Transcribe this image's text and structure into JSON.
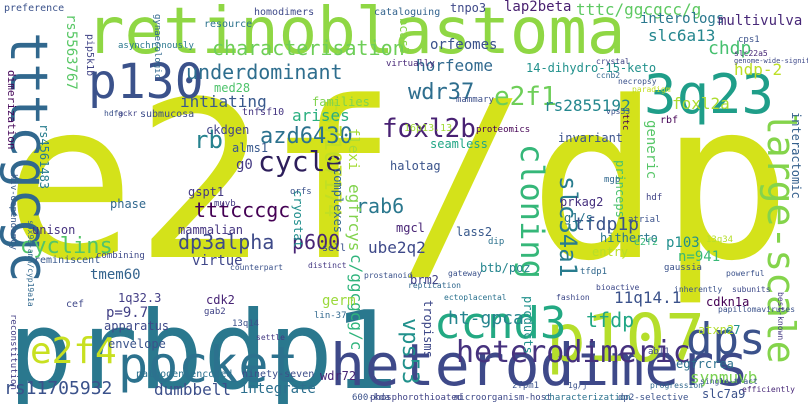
{
  "words": [
    {
      "text": "e2f/dp",
      "color": "#d4e21a"
    },
    {
      "text": "retinoblastoma",
      "color": "#8fd744"
    },
    {
      "text": "prbdp1",
      "color": "#2a788e"
    },
    {
      "text": "heterodimers",
      "color": "#3e4989"
    },
    {
      "text": "p107",
      "color": "#b5de2b"
    },
    {
      "text": "tttcgcgc",
      "color": "#31688e"
    },
    {
      "text": "p130",
      "color": "#3b528b"
    },
    {
      "text": "3q23",
      "color": "#1f9e89"
    },
    {
      "text": "pocket",
      "color": "#2c728e"
    },
    {
      "text": "ccnd3",
      "color": "#23a983"
    },
    {
      "text": "dps",
      "color": "#3b528b"
    },
    {
      "text": "e2f4",
      "color": "#c8e020"
    },
    {
      "text": "large-scale",
      "color": "#84d44b"
    },
    {
      "text": "heterodimeric",
      "color": "#46327e"
    },
    {
      "text": "cycle",
      "color": "#2d1e5b"
    },
    {
      "text": "cloning",
      "color": "#35b779"
    },
    {
      "text": "slc34a1",
      "color": "#287c8e"
    },
    {
      "text": "underdominant",
      "color": "#2e6e8e"
    },
    {
      "text": "characterisation",
      "color": "#6ece58"
    },
    {
      "text": "dp3alpha",
      "color": "#3e4a89"
    },
    {
      "text": "p600",
      "color": "#482475"
    },
    {
      "text": "azd6430",
      "color": "#2c728e"
    },
    {
      "text": "wdr37",
      "color": "#2e6e8e"
    },
    {
      "text": "e2f1",
      "color": "#6ece58"
    },
    {
      "text": "rb",
      "color": "#26828e"
    },
    {
      "text": "foxl2b",
      "color": "#482173"
    },
    {
      "text": "cyclins",
      "color": "#52c569"
    },
    {
      "text": "rs7107174",
      "color": "#c2df23"
    },
    {
      "text": "rs11705932",
      "color": "#3b528b"
    },
    {
      "text": "ht-gpca",
      "color": "#25858e"
    },
    {
      "text": "tfdp1p",
      "color": "#3a538b"
    },
    {
      "text": "chdp",
      "color": "#46c06f"
    },
    {
      "text": "rs5563767",
      "color": "#58c765"
    },
    {
      "text": "tttcccgc",
      "color": "#440154"
    },
    {
      "text": "rab6",
      "color": "#2a788e"
    },
    {
      "text": "vps53",
      "color": "#21918c"
    },
    {
      "text": "dumbbell",
      "color": "#3c4f8a"
    },
    {
      "text": "synmuvb",
      "color": "#7ad151"
    },
    {
      "text": "tfdp",
      "color": "#22a785"
    },
    {
      "text": "11q14.1",
      "color": "#3b528b"
    },
    {
      "text": "c/ggcgcg/c",
      "color": "#2fb47c"
    },
    {
      "text": "ube2q2",
      "color": "#3e4989"
    },
    {
      "text": "egfrcys",
      "color": "#81d34d"
    },
    {
      "text": "tttc/ggcgcc/g",
      "color": "#5ec962"
    },
    {
      "text": "interologs",
      "color": "#2a788e"
    },
    {
      "text": "slc6a13",
      "color": "#24868e"
    },
    {
      "text": "multivulva",
      "color": "#482878"
    },
    {
      "text": "hdp-2",
      "color": "#bddf26"
    },
    {
      "text": "lap2beta",
      "color": "#481f70"
    },
    {
      "text": "tnpo3",
      "color": "#3e4989"
    },
    {
      "text": "rs2855192",
      "color": "#24878e"
    },
    {
      "text": "foxl2a",
      "color": "#addc30"
    },
    {
      "text": "horfeome",
      "color": "#30698e"
    },
    {
      "text": "orfeomes",
      "color": "#3b528b"
    },
    {
      "text": "arises",
      "color": "#29af7f"
    },
    {
      "text": "intiating",
      "color": "#38598c"
    },
    {
      "text": "flexi",
      "color": "#a5db36"
    },
    {
      "text": "mammalian",
      "color": "#453581"
    },
    {
      "text": "rs4561483",
      "color": "#287d8e"
    },
    {
      "text": "tmem60",
      "color": "#33638d"
    },
    {
      "text": "virtue",
      "color": "#3f4788"
    },
    {
      "text": "germ",
      "color": "#9bd93c"
    },
    {
      "text": "brm2",
      "color": "#424086"
    },
    {
      "text": "entry",
      "color": "#b8de29"
    },
    {
      "text": "p103",
      "color": "#218f8d"
    },
    {
      "text": "n=941",
      "color": "#38b977"
    },
    {
      "text": "cdkn1a",
      "color": "#440154"
    },
    {
      "text": "e7",
      "color": "#21918c"
    },
    {
      "text": "atxn2",
      "color": "#b2dd2d"
    },
    {
      "text": "egfrcrea",
      "color": "#2d718e"
    },
    {
      "text": "slc7a9",
      "color": "#3b528b"
    },
    {
      "text": "p=9.7",
      "color": "#424086"
    },
    {
      "text": "1q32.3",
      "color": "#433e85"
    },
    {
      "text": "cdk2",
      "color": "#482576"
    },
    {
      "text": "apparatus",
      "color": "#3e4989"
    },
    {
      "text": "envelope",
      "color": "#3a538b"
    },
    {
      "text": "integrate",
      "color": "#2d708e"
    },
    {
      "text": "pathogen-encoded",
      "color": "#2d718e"
    },
    {
      "text": "ninety-seven",
      "color": "#3d4e8a"
    },
    {
      "text": "wdr72",
      "color": "#482677"
    },
    {
      "text": "cryostat",
      "color": "#218f8d"
    },
    {
      "text": "g0",
      "color": "#443a83"
    },
    {
      "text": "alms1",
      "color": "#38588c"
    },
    {
      "text": "ckdgen",
      "color": "#414487"
    },
    {
      "text": "16p13.13",
      "color": "#a0da39"
    },
    {
      "text": "halotag",
      "color": "#3a538b"
    },
    {
      "text": "complexes",
      "color": "#31688e"
    },
    {
      "text": "prkag2",
      "color": "#46307e"
    },
    {
      "text": "g1/s",
      "color": "#2b748e"
    },
    {
      "text": "lass2",
      "color": "#38598c"
    },
    {
      "text": "mgcl",
      "color": "#482475"
    },
    {
      "text": "sell",
      "color": "#3b528b"
    },
    {
      "text": "hitherto",
      "color": "#2a778e"
    },
    {
      "text": "btb/poz",
      "color": "#25858e"
    },
    {
      "text": "products",
      "color": "#21918c"
    },
    {
      "text": "tropisms",
      "color": "#3e4989"
    },
    {
      "text": "seamless",
      "color": "#21a685"
    },
    {
      "text": "invariant",
      "color": "#3b528b"
    },
    {
      "text": "generic",
      "color": "#56c667"
    },
    {
      "text": "interactomic",
      "color": "#34608d"
    },
    {
      "text": "princeps",
      "color": "#4ac16d"
    },
    {
      "text": "gspt1",
      "color": "#443983"
    },
    {
      "text": "unison",
      "color": "#46337f"
    },
    {
      "text": "phase",
      "color": "#31688e"
    },
    {
      "text": "families",
      "color": "#7fd34e"
    },
    {
      "text": "cef",
      "color": "#3f4889"
    },
    {
      "text": "med28",
      "color": "#4ec36b"
    },
    {
      "text": "pip5k1b",
      "color": "#414487"
    },
    {
      "text": "preference",
      "color": "#3b528b"
    },
    {
      "text": "dimerization",
      "color": "#46075a"
    },
    {
      "text": "resource",
      "color": "#2c738e"
    },
    {
      "text": "homodimers",
      "color": "#3e4989"
    },
    {
      "text": "cataloguing",
      "color": "#33638d"
    },
    {
      "text": "bcas3",
      "color": "#84d44b"
    },
    {
      "text": "virtually",
      "color": "#482878"
    },
    {
      "text": "14-dihydro-15-keto",
      "color": "#21918c"
    },
    {
      "text": "submucosa",
      "color": "#3d4d8a"
    },
    {
      "text": "tnfsf10",
      "color": "#453581"
    },
    {
      "text": "mammary",
      "color": "#3c4f8a"
    },
    {
      "text": "rbf",
      "color": "#440154"
    },
    {
      "text": "asynchronously",
      "color": "#2a788e"
    },
    {
      "text": "gynaecologic",
      "color": "#31688e"
    },
    {
      "text": "reminiscent",
      "color": "#38588c"
    },
    {
      "text": "600-kda",
      "color": "#3b528b"
    },
    {
      "text": "phosphorothioated",
      "color": "#414487"
    },
    {
      "text": "microorganism-host",
      "color": "#3e4989"
    },
    {
      "text": "characterization",
      "color": "#2c728e"
    },
    {
      "text": "dp2-selective",
      "color": "#3b528b"
    },
    {
      "text": "reconstitution",
      "color": "#433e85"
    },
    {
      "text": "hiv-dependency",
      "color": "#38598c"
    },
    {
      "text": "gaussia",
      "color": "#3b528b"
    },
    {
      "text": "cps1",
      "color": "#3b528b"
    },
    {
      "text": "slc22a5",
      "color": "#482878"
    },
    {
      "text": "genome-wide-significant",
      "color": "#3e4989"
    },
    {
      "text": "proteomics",
      "color": "#440154"
    },
    {
      "text": "ccnb2",
      "color": "#31688e"
    },
    {
      "text": "necropsy",
      "color": "#3b528b"
    },
    {
      "text": "crystal",
      "color": "#414487"
    },
    {
      "text": "paradigm",
      "color": "#c2df23"
    },
    {
      "text": "distinct",
      "color": "#443983"
    },
    {
      "text": "prostanoid",
      "color": "#3b528b"
    },
    {
      "text": "replication",
      "color": "#31688e"
    },
    {
      "text": "gateway",
      "color": "#3b528b"
    },
    {
      "text": "ectoplacental",
      "color": "#2c728e"
    },
    {
      "text": "fashion",
      "color": "#3e4989"
    },
    {
      "text": "tfdp1",
      "color": "#31688e"
    },
    {
      "text": "powerful",
      "color": "#3b528b"
    },
    {
      "text": "subunits",
      "color": "#3e4989"
    },
    {
      "text": "papillomaviruses",
      "color": "#3b528b"
    },
    {
      "text": "best-known",
      "color": "#443983"
    },
    {
      "text": "progression",
      "color": "#31688e"
    },
    {
      "text": "single-tract",
      "color": "#3b528b"
    },
    {
      "text": "efficiently",
      "color": "#482878"
    },
    {
      "text": "zfpm1",
      "color": "#3b528b"
    },
    {
      "text": "settle",
      "color": "#443983"
    },
    {
      "text": "13q14",
      "color": "#3b528b"
    },
    {
      "text": "gab2",
      "color": "#414487"
    },
    {
      "text": "lin-37",
      "color": "#31688e"
    },
    {
      "text": "abl1",
      "color": "#3e4989"
    },
    {
      "text": "13q34",
      "color": "#b5de2b"
    },
    {
      "text": "combining",
      "color": "#3e4989"
    },
    {
      "text": "hdfa",
      "color": "#3b528b"
    },
    {
      "text": "gckr",
      "color": "#414487"
    },
    {
      "text": "dip",
      "color": "#2c728e"
    },
    {
      "text": "orfs",
      "color": "#3b528b"
    },
    {
      "text": "hdf",
      "color": "#414487"
    },
    {
      "text": "sox9a-amh/cyp19a1a",
      "color": "#31688e"
    },
    {
      "text": "counterpart",
      "color": "#3b528b"
    },
    {
      "text": "muvb",
      "color": "#443983"
    },
    {
      "text": "e2f2",
      "color": "#35b779"
    },
    {
      "text": "atrial",
      "color": "#3b528b"
    },
    {
      "text": "bioactive",
      "color": "#3e4989"
    },
    {
      "text": "mgp",
      "color": "#31688e"
    },
    {
      "text": "inherently",
      "color": "#3b528b"
    },
    {
      "text": "vps53",
      "color": "#3b528b"
    },
    {
      "text": "ttc",
      "color": "#440154"
    },
    {
      "text": "1g/j",
      "color": "#3b528b"
    }
  ]
}
